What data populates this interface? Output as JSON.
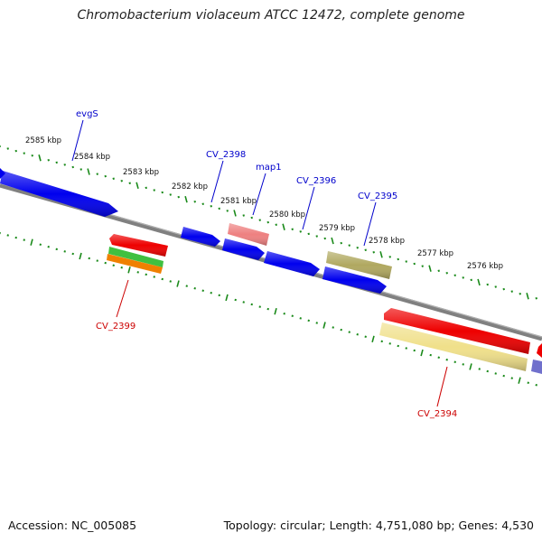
{
  "title": "Chromobacterium violaceum ATCC 12472, complete genome",
  "accession_text": "Accession: NC_005085",
  "summary_text": "Topology: circular; Length: 4,751,080 bp; Genes: 4,530",
  "colors": {
    "backbone": "#808080",
    "ticks": "#1a8a1a",
    "forward_label": "#0000cc",
    "reverse_label": "#cc0000",
    "blue_gene": "#0000ee",
    "red_gene": "#ee0000",
    "pink_gene": "#ee8080",
    "olive_gene": "#b0a860",
    "yellow_gene": "#f0e08a",
    "green_gene": "#40c040",
    "orange_gene": "#f08000",
    "purple_gene": "#7070cc"
  },
  "scale": {
    "unit": "kbp",
    "tick_labels": [
      "2585 kbp",
      "2584 kbp",
      "2583 kbp",
      "2582 kbp",
      "2581 kbp",
      "2580 kbp",
      "2579 kbp",
      "2578 kbp",
      "2577 kbp",
      "2576 kbp"
    ]
  },
  "genes": {
    "forward_labels": [
      "evgS",
      "CV_2398",
      "map1",
      "CV_2396",
      "CV_2395"
    ],
    "reverse_labels": [
      "CV_2399",
      "CV_2394"
    ]
  }
}
